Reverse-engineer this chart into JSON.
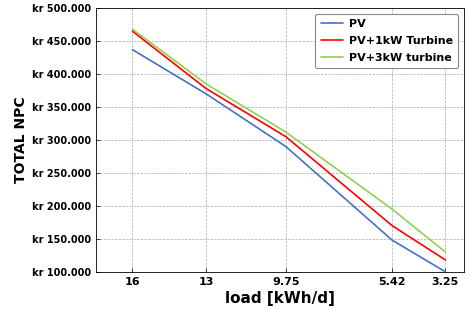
{
  "x_values": [
    16,
    13,
    9.75,
    5.42,
    3.25
  ],
  "x_labels": [
    "16",
    "13",
    "9.75",
    "5.42",
    "3.25"
  ],
  "pv_y": [
    437000,
    370000,
    290000,
    148000,
    100000
  ],
  "pv1kw_y": [
    465000,
    378000,
    305000,
    170000,
    118000
  ],
  "pv3kw_y": [
    468000,
    385000,
    312000,
    195000,
    130000
  ],
  "series_labels": [
    "PV",
    "PV+1kW Turbine",
    "PV+3kW turbine"
  ],
  "colors": [
    "#4472C4",
    "#FF0000",
    "#92D050"
  ],
  "xlabel": "load [kWh/d]",
  "ylabel": "TOTAL NPC",
  "ylim_min": 100000,
  "ylim_max": 500000,
  "yticks": [
    100000,
    150000,
    200000,
    250000,
    300000,
    350000,
    400000,
    450000,
    500000
  ],
  "ytick_labels": [
    "kr 100.000",
    "kr 150.000",
    "kr 200.000",
    "kr 250.000",
    "kr 300.000",
    "kr 350.000",
    "kr 400.000",
    "kr 450.000",
    "kr 500.000"
  ],
  "background_color": "#FFFFFF",
  "grid_color": "#AAAAAA",
  "legend_loc": "upper right"
}
